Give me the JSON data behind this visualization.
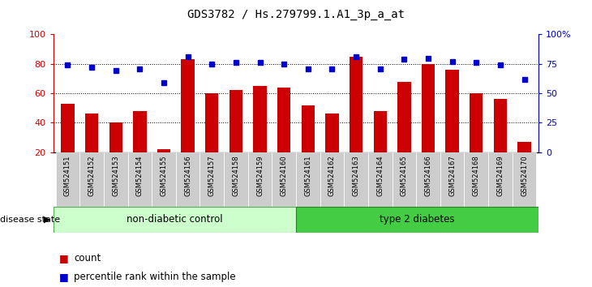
{
  "title": "GDS3782 / Hs.279799.1.A1_3p_a_at",
  "samples": [
    "GSM524151",
    "GSM524152",
    "GSM524153",
    "GSM524154",
    "GSM524155",
    "GSM524156",
    "GSM524157",
    "GSM524158",
    "GSM524159",
    "GSM524160",
    "GSM524161",
    "GSM524162",
    "GSM524163",
    "GSM524164",
    "GSM524165",
    "GSM524166",
    "GSM524167",
    "GSM524168",
    "GSM524169",
    "GSM524170"
  ],
  "counts": [
    53,
    46,
    40,
    48,
    22,
    83,
    60,
    62,
    65,
    64,
    52,
    46,
    85,
    48,
    68,
    80,
    76,
    60,
    56,
    27
  ],
  "percentiles": [
    74,
    72,
    69,
    71,
    59,
    81,
    75,
    76,
    76,
    75,
    71,
    71,
    81,
    71,
    79,
    80,
    77,
    76,
    74,
    62
  ],
  "bar_color": "#cc0000",
  "dot_color": "#0000cc",
  "non_diabetic_count": 10,
  "non_diabetic_label": "non-diabetic control",
  "diabetic_label": "type 2 diabetes",
  "non_diabetic_color": "#ccffcc",
  "diabetic_color": "#44cc44",
  "ylim_left": [
    20,
    100
  ],
  "ylim_right": [
    0,
    100
  ],
  "yticks_left": [
    20,
    40,
    60,
    80,
    100
  ],
  "yticks_right": [
    0,
    25,
    50,
    75,
    100
  ],
  "ytick_labels_left": [
    "20",
    "40",
    "60",
    "80",
    "100"
  ],
  "ytick_labels_right": [
    "0",
    "25",
    "50",
    "75",
    "100%"
  ],
  "background_color": "#ffffff",
  "legend_count_label": "count",
  "legend_pct_label": "percentile rank within the sample",
  "grid_lines": [
    40,
    60,
    80
  ],
  "disease_state_label": "disease state"
}
